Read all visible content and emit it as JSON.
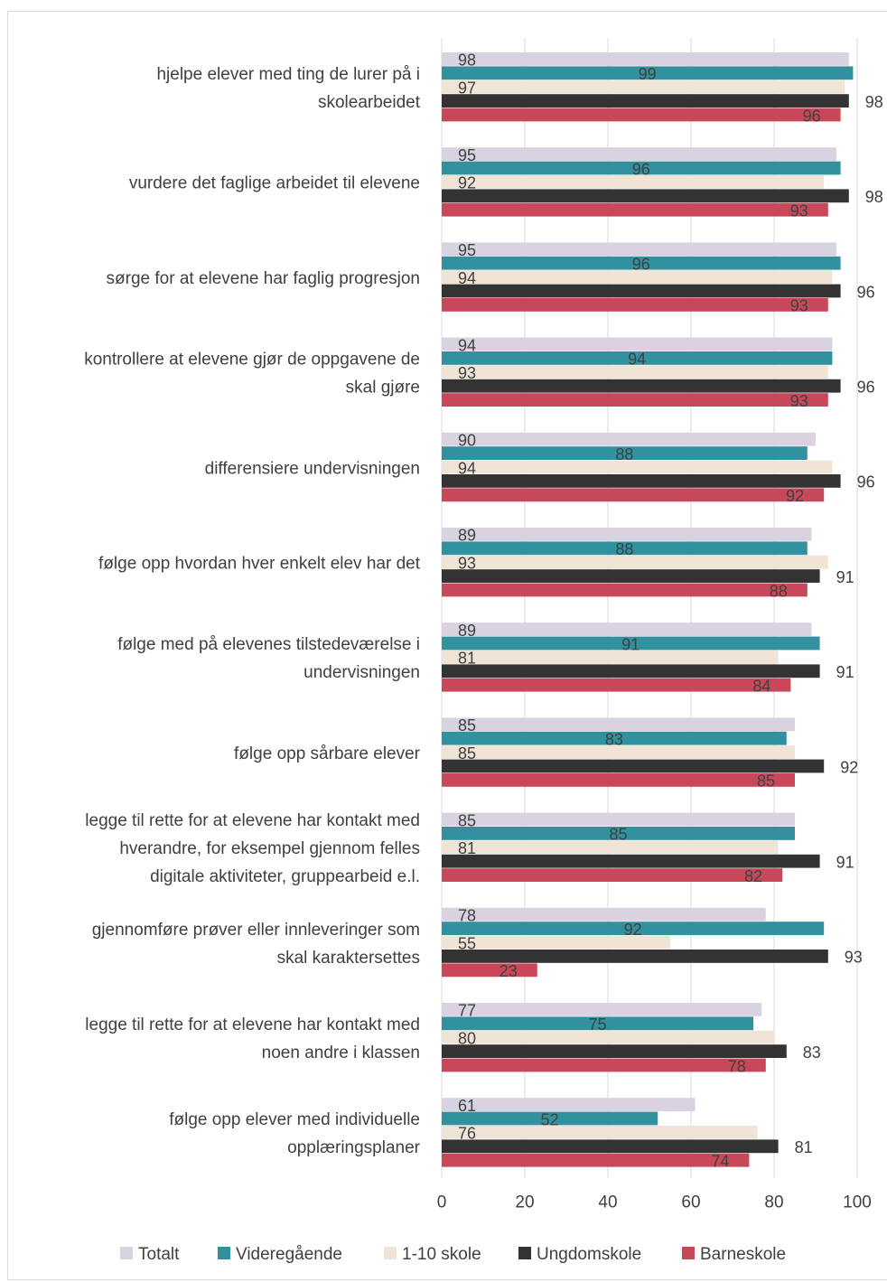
{
  "chart_data": {
    "type": "bar",
    "orientation": "horizontal",
    "categories": [
      [
        "hjelpe elever med ting de lurer på i",
        "skolearbeidet"
      ],
      [
        "vurdere det faglige arbeidet til elevene"
      ],
      [
        "sørge for at elevene har faglig progresjon"
      ],
      [
        "kontrollere at elevene gjør de oppgavene de",
        "skal gjøre"
      ],
      [
        "differensiere undervisningen"
      ],
      [
        "følge opp hvordan hver enkelt elev har det"
      ],
      [
        "følge med på elevenes tilstedeværelse i",
        "undervisningen"
      ],
      [
        "følge opp sårbare elever"
      ],
      [
        "legge til rette for at elevene har kontakt med",
        "hverandre, for eksempel gjennom felles",
        "digitale aktiviteter, gruppearbeid e.l."
      ],
      [
        "gjennomføre prøver eller innleveringer som",
        "skal karaktersettes"
      ],
      [
        "legge til rette for at elevene har kontakt med",
        "noen andre i klassen"
      ],
      [
        "følge opp elever med individuelle",
        "opplæringsplaner"
      ]
    ],
    "series": [
      {
        "name": "Totalt",
        "color": "#d9d2e0",
        "values": [
          98,
          95,
          95,
          94,
          90,
          89,
          89,
          85,
          85,
          78,
          77,
          61
        ]
      },
      {
        "name": "Videregående",
        "color": "#31919e",
        "values": [
          99,
          96,
          96,
          94,
          88,
          88,
          91,
          83,
          85,
          92,
          75,
          52
        ]
      },
      {
        "name": "1-10 skole",
        "color": "#efe4d6",
        "values": [
          97,
          92,
          94,
          93,
          94,
          93,
          81,
          85,
          81,
          55,
          80,
          76
        ]
      },
      {
        "name": "Ungdomskole",
        "color": "#333333",
        "values": [
          98,
          98,
          96,
          96,
          96,
          91,
          91,
          92,
          91,
          93,
          83,
          81
        ]
      },
      {
        "name": "Barneskole",
        "color": "#c8485a",
        "values": [
          96,
          93,
          93,
          93,
          92,
          88,
          84,
          85,
          82,
          23,
          78,
          74
        ]
      }
    ],
    "xlim": [
      0,
      100
    ],
    "xticks": [
      "0",
      "20",
      "40",
      "60",
      "80",
      "100"
    ],
    "grid": "vertical",
    "legend_position": "bottom"
  }
}
